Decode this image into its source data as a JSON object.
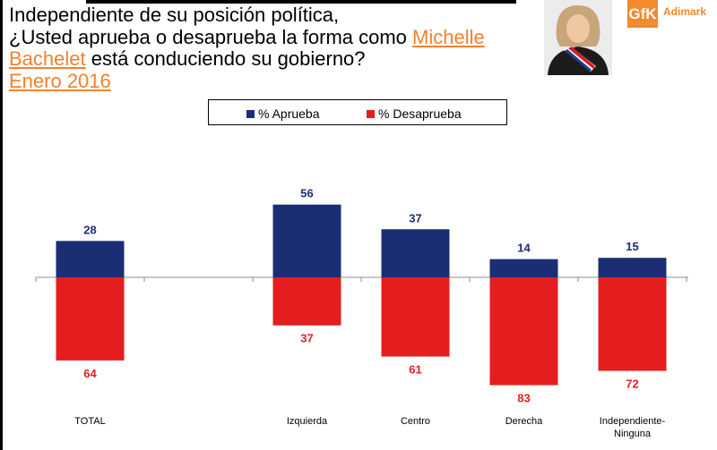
{
  "header": {
    "title_line1": "Independiente de su posición política,",
    "title_line2_prefix": "¿Usted aprueba o desaprueba la forma como ",
    "title_line2_highlight": "Michelle",
    "title_line3_highlight": "Bachelet",
    "title_line3_suffix": " está conduciendo su gobierno?",
    "title_line4": "Enero 2016"
  },
  "brand": {
    "logo_mark": "GfK",
    "logo_name": "Adimark"
  },
  "colors": {
    "aprueba": "#1c2e73",
    "desaprueba": "#e41e1e",
    "highlight": "#f2812e"
  },
  "chart_data": {
    "type": "bar",
    "categories": [
      "TOTAL",
      "Izquierda",
      "Centro",
      "Derecha",
      "Independiente-\nNinguna"
    ],
    "category_slots": [
      0,
      2,
      3,
      4,
      5
    ],
    "series": [
      {
        "name": "% Aprueba",
        "values": [
          28,
          56,
          37,
          14,
          15
        ],
        "direction": "up"
      },
      {
        "name": "% Desaprueba",
        "values": [
          64,
          37,
          61,
          83,
          72
        ],
        "direction": "down"
      }
    ],
    "legend_position": "top-center",
    "grid": false
  }
}
